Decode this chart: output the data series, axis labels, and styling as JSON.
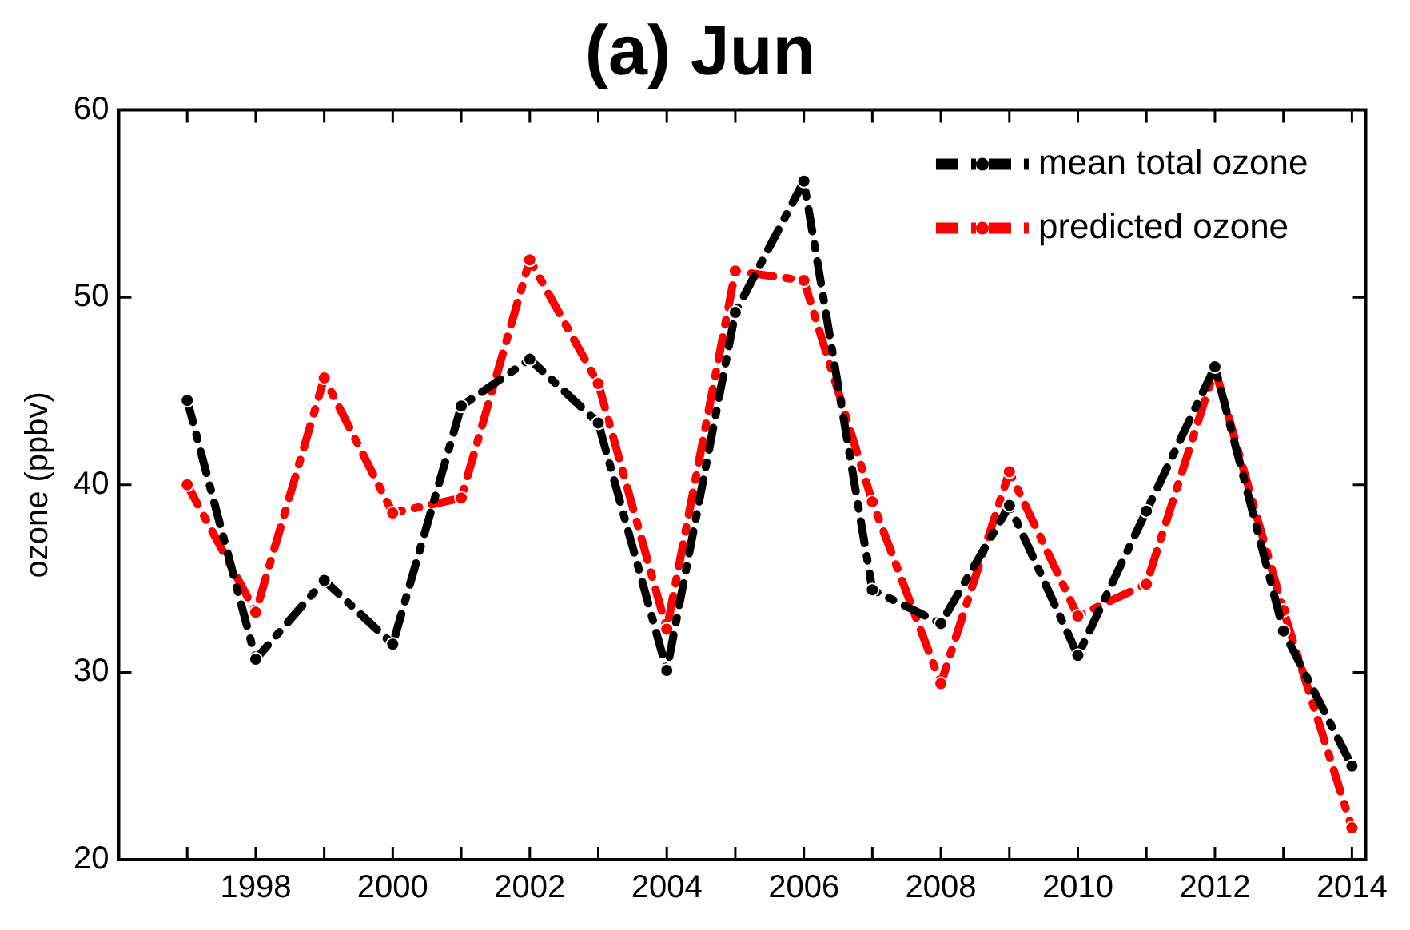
{
  "chart_data": {
    "type": "line",
    "title": "(a) Jun",
    "ylabel": "ozone (ppbv)",
    "x": [
      1997,
      1998,
      1999,
      2000,
      2001,
      2002,
      2003,
      2004,
      2005,
      2006,
      2007,
      2008,
      2009,
      2010,
      2011,
      2012,
      2013,
      2014
    ],
    "series": [
      {
        "name": "mean total ozone",
        "color": "#000000",
        "values": [
          44.5,
          30.7,
          34.9,
          31.5,
          44.2,
          46.7,
          43.3,
          30.1,
          49.2,
          56.2,
          34.4,
          32.6,
          38.9,
          30.9,
          38.6,
          46.3,
          32.2,
          25.0
        ]
      },
      {
        "name": "predicted ozone",
        "color": "#ff0000",
        "values": [
          40.0,
          33.2,
          45.7,
          38.5,
          39.3,
          52.0,
          45.4,
          32.3,
          51.4,
          50.9,
          39.1,
          29.4,
          40.7,
          33.0,
          34.7,
          46.2,
          33.3,
          21.7
        ]
      }
    ],
    "xlim": [
      1996,
      2014.2
    ],
    "xticks": [
      {
        "value": 1997,
        "label": null
      },
      1998,
      {
        "value": 1999,
        "label": null
      },
      2000,
      {
        "value": 2001,
        "label": null
      },
      2002,
      {
        "value": 2003,
        "label": null
      },
      2004,
      {
        "value": 2005,
        "label": null
      },
      2006,
      {
        "value": 2007,
        "label": null
      },
      2008,
      {
        "value": 2009,
        "label": null
      },
      2010,
      {
        "value": 2011,
        "label": null
      },
      2012,
      {
        "value": 2013,
        "label": null
      },
      2014
    ],
    "ylim": [
      20,
      60
    ],
    "yticks": [
      20,
      30,
      40,
      50,
      60
    ],
    "grid": false,
    "legend": "top right",
    "marker": "circle",
    "line_style": "dashed"
  }
}
